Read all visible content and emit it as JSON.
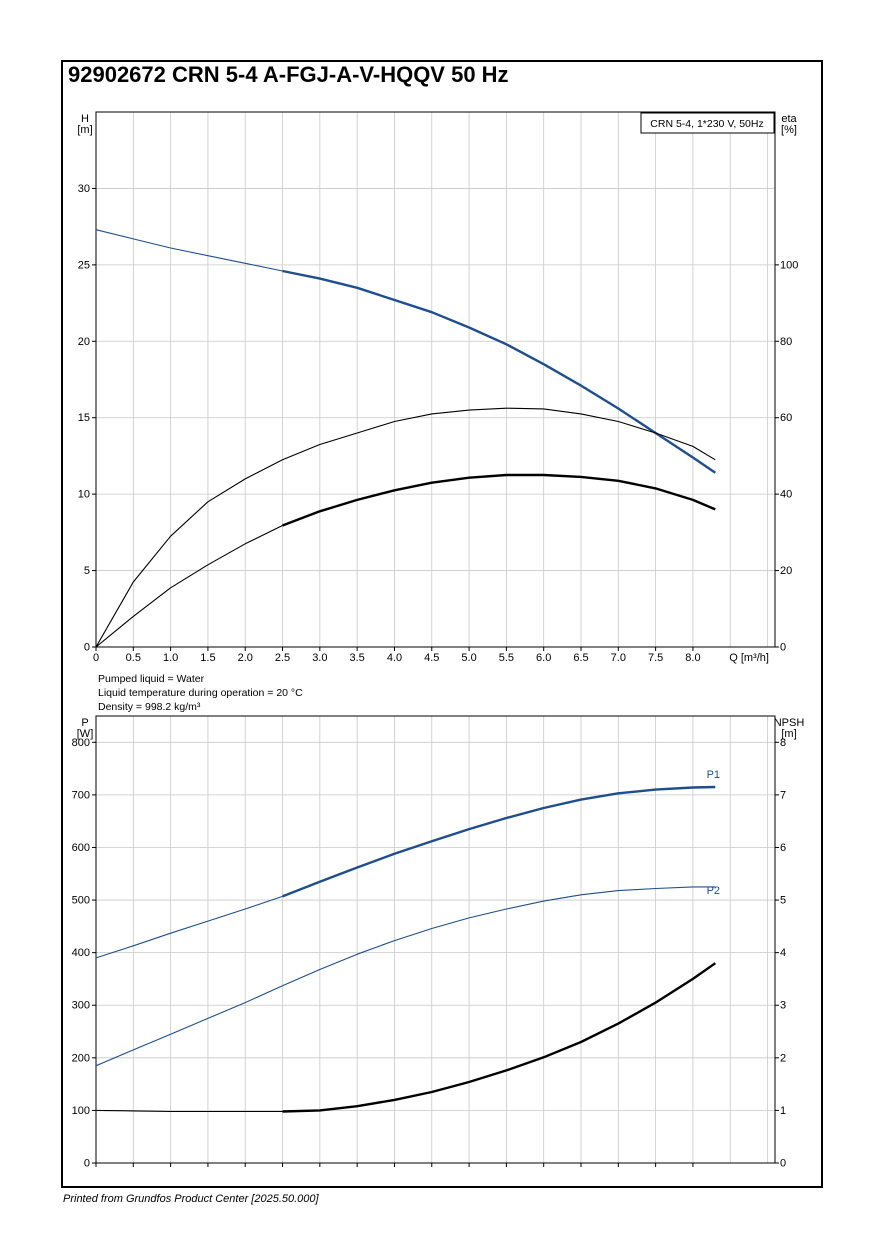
{
  "title": "92902672 CRN 5-4 A-FGJ-A-V-HQQV 50 Hz",
  "footer": "Printed from Grundfos Product Center [2025.50.000]",
  "colors": {
    "blue": "#1f4e8c",
    "black": "#000000",
    "grid": "#c8c8c8"
  },
  "chart_data": [
    {
      "type": "line",
      "legend_box": "CRN 5-4, 1*230 V, 50Hz",
      "y_left_label": [
        "H",
        "[m]"
      ],
      "y_right_label": [
        "eta",
        "[%]"
      ],
      "x_label": "Q [m³/h]",
      "xlim": [
        0,
        9.1
      ],
      "ylim_left": [
        0,
        35
      ],
      "ylim_right": [
        0,
        140
      ],
      "x_ticks": [
        "0",
        "0.5",
        "1.0",
        "1.5",
        "2.0",
        "2.5",
        "3.0",
        "3.5",
        "4.0",
        "4.5",
        "5.0",
        "5.5",
        "6.0",
        "6.5",
        "7.0",
        "7.5",
        "8.0"
      ],
      "y_left_ticks": [
        "0",
        "5",
        "10",
        "15",
        "20",
        "25",
        "30"
      ],
      "y_right_ticks": [
        "0",
        "20",
        "40",
        "60",
        "80",
        "100"
      ],
      "notes": [
        "Pumped liquid = Water",
        "Liquid temperature during operation = 20 °C",
        "Density = 998.2 kg/m³"
      ],
      "series": [
        {
          "axis": "left",
          "color": "blue",
          "x": [
            0,
            0.5,
            1.0,
            1.5,
            2.0,
            2.5,
            3.0,
            3.5,
            4.0,
            4.5,
            5.0,
            5.5,
            6.0,
            6.5,
            7.0,
            7.5,
            8.0,
            8.3
          ],
          "y": [
            27.3,
            26.7,
            26.1,
            25.6,
            25.1,
            24.6,
            24.1,
            23.5,
            22.7,
            21.9,
            20.9,
            19.8,
            18.5,
            17.1,
            15.6,
            14.0,
            12.4,
            11.4
          ],
          "operating_from": 2.5
        },
        {
          "axis": "right",
          "color": "black",
          "x": [
            0,
            0.5,
            1.0,
            1.5,
            2.0,
            2.5,
            3.0,
            3.5,
            4.0,
            4.5,
            5.0,
            5.5,
            6.0,
            6.5,
            7.0,
            7.5,
            8.0,
            8.3
          ],
          "y": [
            0,
            17,
            29,
            38,
            44,
            49,
            53,
            56,
            59,
            61,
            62,
            62.5,
            62.3,
            61,
            59,
            56,
            52.5,
            49
          ],
          "operating_from": 8.35
        },
        {
          "axis": "right",
          "color": "black",
          "x": [
            0,
            0.5,
            1.0,
            1.5,
            2.0,
            2.5,
            3.0,
            3.5,
            4.0,
            4.5,
            5.0,
            5.5,
            6.0,
            6.5,
            7.0,
            7.5,
            8.0,
            8.3
          ],
          "y": [
            0,
            8,
            15.5,
            21.5,
            27,
            31.8,
            35.5,
            38.5,
            41,
            43,
            44.3,
            45,
            45,
            44.5,
            43.5,
            41.5,
            38.5,
            36
          ],
          "operating_from": 2.5
        }
      ]
    },
    {
      "type": "line",
      "y_left_label": [
        "P",
        "[W]"
      ],
      "y_right_label": [
        "NPSH",
        "[m]"
      ],
      "xlim": [
        0,
        9.1
      ],
      "ylim_left": [
        0,
        850
      ],
      "ylim_right": [
        0,
        8.5
      ],
      "y_left_ticks": [
        "0",
        "100",
        "200",
        "300",
        "400",
        "500",
        "600",
        "700",
        "800"
      ],
      "y_right_ticks": [
        "0",
        "1",
        "2",
        "3",
        "4",
        "5",
        "6",
        "7",
        "8"
      ],
      "series": [
        {
          "name": "P1",
          "axis": "left",
          "color": "blue",
          "x": [
            0,
            0.5,
            1.0,
            1.5,
            2.0,
            2.5,
            3.0,
            3.5,
            4.0,
            4.5,
            5.0,
            5.5,
            6.0,
            6.5,
            7.0,
            7.5,
            8.0,
            8.3
          ],
          "y": [
            390,
            413,
            437,
            460,
            483,
            507,
            535,
            562,
            588,
            612,
            635,
            656,
            675,
            691,
            703,
            710,
            714,
            715
          ],
          "operating_from": 2.5
        },
        {
          "name": "P2",
          "axis": "left",
          "color": "blue",
          "x": [
            0,
            0.5,
            1.0,
            1.5,
            2.0,
            2.5,
            3.0,
            3.5,
            4.0,
            4.5,
            5.0,
            5.5,
            6.0,
            6.5,
            7.0,
            7.5,
            8.0,
            8.3
          ],
          "y": [
            185,
            215,
            245,
            275,
            305,
            337,
            368,
            397,
            423,
            446,
            466,
            483,
            498,
            510,
            518,
            522,
            525,
            525
          ],
          "operating_from": 8.35
        },
        {
          "axis": "right",
          "color": "black",
          "x": [
            0,
            0.5,
            1.0,
            1.5,
            2.0,
            2.5,
            3.0,
            3.5,
            4.0,
            4.5,
            5.0,
            5.5,
            6.0,
            6.5,
            7.0,
            7.5,
            8.0,
            8.3
          ],
          "y": [
            1.0,
            0.99,
            0.98,
            0.98,
            0.98,
            0.98,
            1.0,
            1.08,
            1.2,
            1.35,
            1.54,
            1.76,
            2.01,
            2.3,
            2.65,
            3.05,
            3.5,
            3.8
          ],
          "operating_from": 2.5
        }
      ]
    }
  ]
}
